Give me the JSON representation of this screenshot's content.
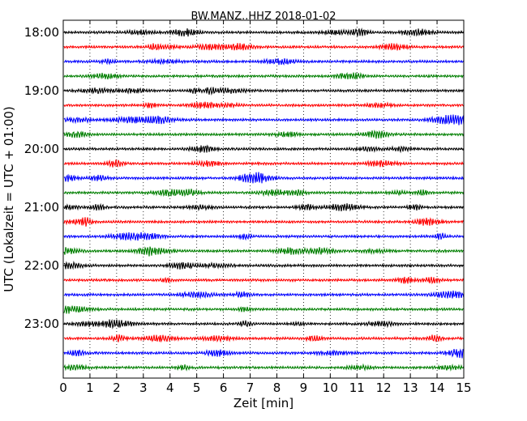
{
  "chart_data": {
    "type": "line",
    "title": "BW.MANZ..HHZ 2018-01-02",
    "xlabel": "Zeit  [min]",
    "ylabel": "UTC (Lokalzeit = UTC + 01:00)",
    "xlim": [
      0,
      15
    ],
    "x_ticks": [
      "0",
      "1",
      "2",
      "3",
      "4",
      "5",
      "6",
      "7",
      "8",
      "9",
      "10",
      "11",
      "12",
      "13",
      "14",
      "15"
    ],
    "y_tick_labels": [
      "18:00",
      "19:00",
      "20:00",
      "21:00",
      "22:00",
      "23:00"
    ],
    "trace_count": 24,
    "trace_interval_minutes": 15,
    "first_trace_start": "18:00",
    "trace_colors": [
      "#000000",
      "#ff0000",
      "#0000ff",
      "#007f00"
    ],
    "grid": "vertical-dotted",
    "legend": "none"
  }
}
